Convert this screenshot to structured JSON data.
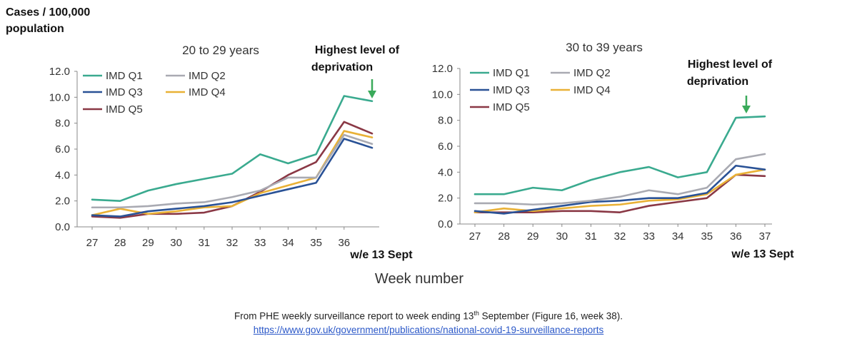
{
  "page": {
    "y_unit_line1": "Cases / 100,000",
    "y_unit_line2": "population",
    "x_axis_title": "Week number",
    "footer_pre": "From PHE weekly surveillance report to week ending 13",
    "footer_sup": "th",
    "footer_post": " September (Figure 16, week 38).",
    "footer_link": "https://www.gov.uk/government/publications/national-covid-19-surveillance-reports"
  },
  "chart_data": [
    {
      "type": "line",
      "title": "20 to 29 years",
      "annotation_line1": "Highest level of",
      "annotation_line2": "deprivation",
      "x_note": "w/e 13 Sept",
      "x_tick_labels": [
        "27",
        "28",
        "29",
        "30",
        "31",
        "32",
        "33",
        "34",
        "35",
        "36"
      ],
      "x": [
        27,
        28,
        29,
        30,
        31,
        32,
        33,
        34,
        35,
        36,
        37
      ],
      "ylim": [
        0,
        12
      ],
      "yticks": [
        "0.0",
        "2.0",
        "4.0",
        "6.0",
        "8.0",
        "10.0",
        "12.0"
      ],
      "series": [
        {
          "name": "IMD Q1",
          "color": "#3aaa8f",
          "values": [
            2.1,
            2.0,
            2.8,
            3.3,
            3.7,
            4.1,
            5.6,
            4.9,
            5.6,
            10.1,
            9.7
          ]
        },
        {
          "name": "IMD Q2",
          "color": "#a9aab2",
          "values": [
            1.5,
            1.5,
            1.6,
            1.8,
            1.9,
            2.3,
            2.8,
            3.8,
            3.8,
            7.1,
            6.4
          ]
        },
        {
          "name": "IMD Q3",
          "color": "#2a5296",
          "values": [
            0.9,
            0.8,
            1.2,
            1.4,
            1.6,
            1.9,
            2.4,
            2.9,
            3.4,
            6.8,
            6.1
          ]
        },
        {
          "name": "IMD Q4",
          "color": "#e9b136",
          "values": [
            0.9,
            1.4,
            1.0,
            1.2,
            1.5,
            1.6,
            2.6,
            3.2,
            3.8,
            7.4,
            6.9
          ]
        },
        {
          "name": "IMD Q5",
          "color": "#8a3845",
          "values": [
            0.8,
            0.7,
            1.0,
            1.0,
            1.1,
            1.6,
            2.7,
            4.0,
            5.0,
            8.1,
            7.2
          ]
        }
      ]
    },
    {
      "type": "line",
      "title": "30 to 39 years",
      "annotation_line1": "Highest level of",
      "annotation_line2": "deprivation",
      "x_note": "w/e 13 Sept",
      "x_tick_labels": [
        "27",
        "28",
        "29",
        "30",
        "31",
        "32",
        "33",
        "34",
        "35",
        "36",
        "37"
      ],
      "x": [
        27,
        28,
        29,
        30,
        31,
        32,
        33,
        34,
        35,
        36,
        37
      ],
      "ylim": [
        0,
        12
      ],
      "yticks": [
        "0.0",
        "2.0",
        "4.0",
        "6.0",
        "8.0",
        "10.0",
        "12.0"
      ],
      "series": [
        {
          "name": "IMD Q1",
          "color": "#3aaa8f",
          "values": [
            2.3,
            2.3,
            2.8,
            2.6,
            3.4,
            4.0,
            4.4,
            3.6,
            4.0,
            8.2,
            8.3
          ]
        },
        {
          "name": "IMD Q2",
          "color": "#a9aab2",
          "values": [
            1.6,
            1.6,
            1.5,
            1.6,
            1.8,
            2.1,
            2.6,
            2.3,
            2.8,
            5.0,
            5.4
          ]
        },
        {
          "name": "IMD Q3",
          "color": "#2a5296",
          "values": [
            1.0,
            0.8,
            1.1,
            1.4,
            1.7,
            1.8,
            2.0,
            2.0,
            2.4,
            4.5,
            4.2
          ]
        },
        {
          "name": "IMD Q4",
          "color": "#e9b136",
          "values": [
            0.9,
            1.2,
            1.0,
            1.2,
            1.4,
            1.5,
            1.8,
            1.9,
            2.3,
            3.8,
            4.2
          ]
        },
        {
          "name": "IMD Q5",
          "color": "#8a3845",
          "values": [
            0.9,
            0.9,
            0.9,
            1.0,
            1.0,
            0.9,
            1.4,
            1.7,
            2.0,
            3.8,
            3.7
          ]
        }
      ]
    }
  ]
}
